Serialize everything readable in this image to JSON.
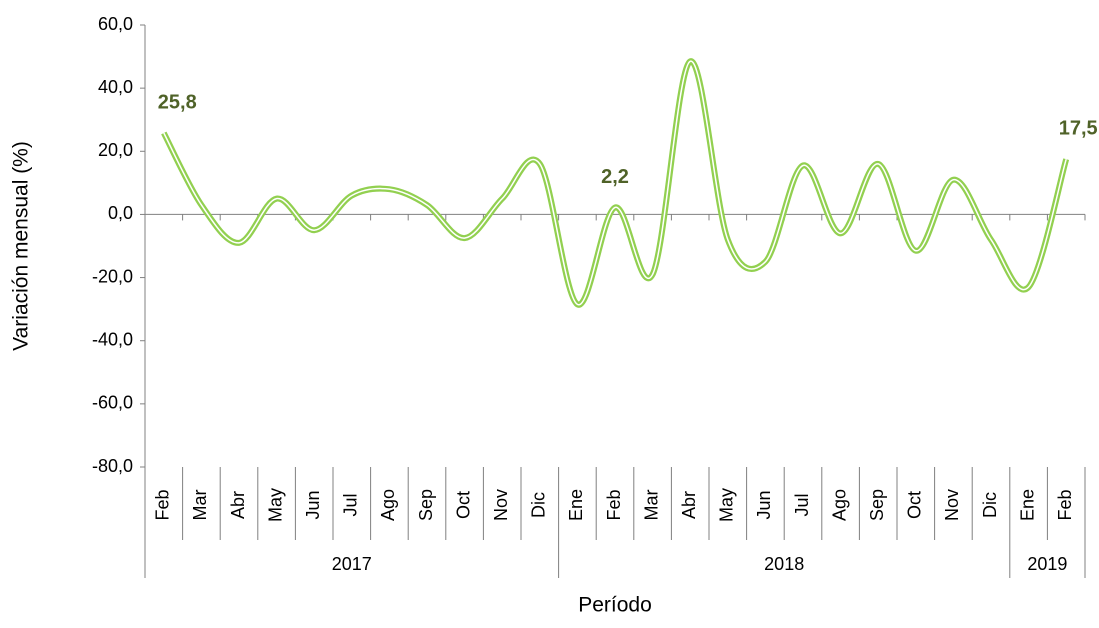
{
  "chart_data": {
    "type": "line",
    "x_label": "Período",
    "y_label": "Variación mensual (%)",
    "category_groups": [
      {
        "label": "2017",
        "categories": [
          "Feb",
          "Mar",
          "Abr",
          "May",
          "Jun",
          "Jul",
          "Ago",
          "Sep",
          "Oct",
          "Nov",
          "Dic"
        ]
      },
      {
        "label": "2018",
        "categories": [
          "Ene",
          "Feb",
          "Mar",
          "Abr",
          "May",
          "Jun",
          "Jul",
          "Ago",
          "Sep",
          "Oct",
          "Nov",
          "Dic"
        ]
      },
      {
        "label": "2019",
        "categories": [
          "Ene",
          "Feb"
        ]
      }
    ],
    "series": [
      {
        "name": "Variación mensual",
        "color": "#92d050",
        "values": [
          25.8,
          3.0,
          -9.0,
          5.0,
          -5.0,
          6.0,
          8.0,
          3.0,
          -7.5,
          5.0,
          16.0,
          -28.5,
          2.2,
          -19.0,
          48.5,
          -8.0,
          -15.0,
          15.5,
          -6.0,
          16.0,
          -11.5,
          11.0,
          -8.0,
          -23.0,
          17.5
        ],
        "value_labels": [
          "25,8",
          null,
          null,
          null,
          null,
          null,
          null,
          null,
          null,
          null,
          null,
          null,
          "2,2",
          null,
          null,
          null,
          null,
          null,
          null,
          null,
          null,
          null,
          null,
          null,
          "17,5"
        ]
      }
    ],
    "ylim": [
      -80,
      60
    ],
    "yticks": [
      {
        "value": -80,
        "label": "-80,0"
      },
      {
        "value": -60,
        "label": "-60,0"
      },
      {
        "value": -40,
        "label": "-40,0"
      },
      {
        "value": -20,
        "label": "-20,0"
      },
      {
        "value": 0,
        "label": "0,0"
      },
      {
        "value": 20,
        "label": "20,0"
      },
      {
        "value": 40,
        "label": "40,0"
      },
      {
        "value": 60,
        "label": "60,0"
      }
    ],
    "label_color": "#4f6228",
    "smooth": true
  }
}
